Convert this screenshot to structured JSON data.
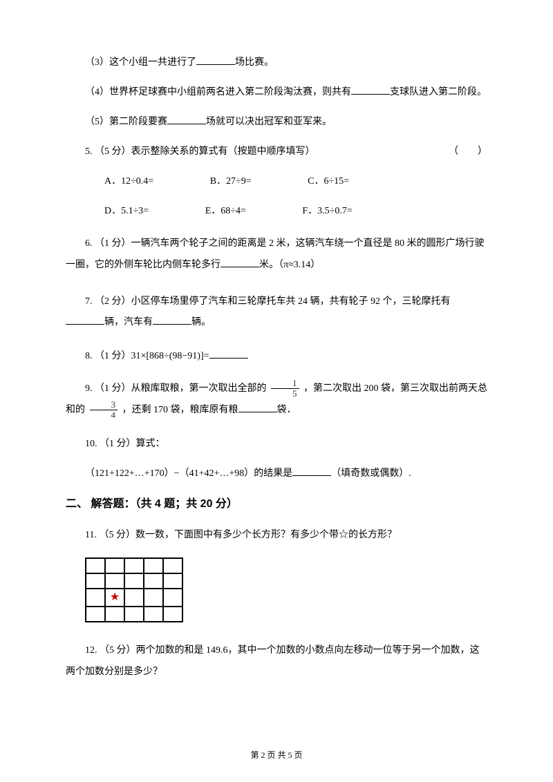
{
  "q3": {
    "text_a": "（3）这个小组一共进行了",
    "text_b": "场比赛。"
  },
  "q4": {
    "text_a": "（4）世界杯足球赛中小组前两名进入第二阶段淘汰赛，则共有",
    "text_b": "支球队进入第二阶段。"
  },
  "q5": {
    "text_a": "（5）第二阶段要赛",
    "text_b": "场就可以决出冠军和亚军来。"
  },
  "q_5": {
    "stem": "5. （5 分）表示整除关系的算式有（按题中顺序填写）",
    "paren": "（　　）",
    "opts1": [
      {
        "label": "A．12÷0.4="
      },
      {
        "label": "B．27÷9="
      },
      {
        "label": "C．6÷15="
      }
    ],
    "opts2": [
      {
        "label": "D．5.1÷3="
      },
      {
        "label": "E．68÷4="
      },
      {
        "label": "F．3.5÷0.7="
      }
    ]
  },
  "q_6": {
    "text_a": "6. （1 分）一辆汽车两个轮子之间的距离是 2 米，这辆汽车绕一个直径是 80 米的圆形广场行驶一圈，它的外侧车轮比内侧车轮多行",
    "text_b": "米。（π≈3.14）"
  },
  "q_7": {
    "text_a": "7. （2 分）小区停车场里停了汽车和三轮摩托车共 24 辆，共有轮子 92 个，三轮摩托有",
    "text_b": "辆，汽车有",
    "text_c": "辆。"
  },
  "q_8": {
    "text_a": "8. （1 分）31×[868÷(98−91)]="
  },
  "q_9": {
    "text_a": "9. （1 分）从粮库取粮，第一次取出全部的",
    "frac1": {
      "num": "1",
      "den": "5"
    },
    "text_b": "，第二次取出 200 袋，第三次取出前两天总和的",
    "frac2": {
      "num": "3",
      "den": "4"
    },
    "text_c": "，还剩 170 袋，粮库原有粮",
    "text_d": "袋．"
  },
  "q_10": {
    "line1": "10. （1 分）算式：",
    "line2_a": "（121+122+…+170）−（41+42+…+98）的结果是",
    "line2_b": "（填奇数或偶数）."
  },
  "section2": "二、 解答题：（共 4 题；共 20 分）",
  "q_11": {
    "text": "11.  （5 分）数一数，下面图中有多少个长方形？有多少个带☆的长方形？",
    "star": "★"
  },
  "q_12": {
    "text": "12.  （5 分）两个加数的和是 149.6，其中一个加数的小数点向左移动一位等于另一个加数，这两个加数分别是多少？"
  },
  "footer": "第 2 页 共 5 页"
}
